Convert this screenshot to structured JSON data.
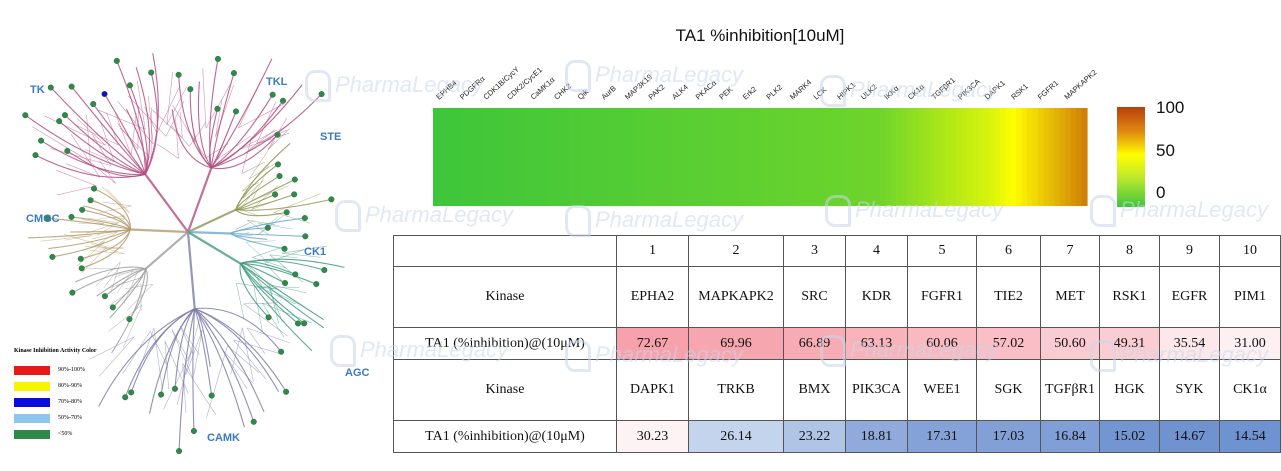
{
  "chart_data": [
    {
      "type": "heatmap",
      "title": "TA1 %inhibition[10uM]",
      "categories": [
        "EPHB4",
        "PDGFRα",
        "CDK1B/CycY",
        "CDK2/CycE1",
        "CaMK1α",
        "CHK2",
        "Qik",
        "AurB",
        "MAP3K19",
        "PAK2",
        "ALK4",
        "PKACα",
        "PEK",
        "Erk2",
        "PLK2",
        "MARK4",
        "LCK",
        "HIPK1",
        "ULK2",
        "IKKα",
        "CK1α",
        "TGFβR1",
        "PIK3CA",
        "DAPK1",
        "RSK1",
        "FGFR1",
        "MAPKAPK2"
      ],
      "colorbar": {
        "min": 0,
        "max": 100,
        "ticks": [
          "100",
          "50",
          "0"
        ]
      },
      "colors": {
        "low": "#3ec63a",
        "mid": "#ffff00",
        "high": "#b8400c"
      }
    },
    {
      "type": "table",
      "columns": [
        "1",
        "2",
        "3",
        "4",
        "5",
        "6",
        "7",
        "8",
        "9",
        "10"
      ],
      "row_label_kinase": "Kinase",
      "row_label_value": "TA1 (%inhibition)@(10μM)",
      "group1": {
        "kinases": [
          "EPHA2",
          "MAPKAPK2",
          "SRC",
          "KDR",
          "FGFR1",
          "TIE2",
          "MET",
          "RSK1",
          "EGFR",
          "PIM1"
        ],
        "values": [
          72.67,
          69.96,
          66.89,
          63.13,
          60.06,
          57.02,
          50.6,
          49.31,
          35.54,
          31.0
        ],
        "labels": [
          "72.67",
          "69.96",
          "66.89",
          "63.13",
          "60.06",
          "57.02",
          "50.60",
          "49.31",
          "35.54",
          "31.00"
        ]
      },
      "group2": {
        "kinases": [
          "DAPK1",
          "TRKB",
          "BMX",
          "PIK3CA",
          "WEE1",
          "SGK",
          "TGFβR1",
          "HGK",
          "SYK",
          "CK1α"
        ],
        "values": [
          30.23,
          26.14,
          23.22,
          18.81,
          17.31,
          17.03,
          16.84,
          15.02,
          14.67,
          14.54
        ],
        "labels": [
          "30.23",
          "26.14",
          "23.22",
          "18.81",
          "17.31",
          "17.03",
          "16.84",
          "15.02",
          "14.67",
          "14.54"
        ]
      }
    }
  ],
  "kinome": {
    "families": [
      "TK",
      "TKL",
      "STE",
      "CMGC",
      "CK1",
      "AGC",
      "CAMK"
    ],
    "legend_title": "Kinase Inhibition Activity Color",
    "legend": [
      {
        "label": "90%-100%",
        "color": "#e81919"
      },
      {
        "label": "80%-90%",
        "color": "#f5f500"
      },
      {
        "label": "70%-80%",
        "color": "#0b0bdc"
      },
      {
        "label": "50%-70%",
        "color": "#8fc6f0"
      },
      {
        "label": "<50%",
        "color": "#2f8a4a"
      }
    ]
  },
  "watermark": "PharmaLegacy"
}
